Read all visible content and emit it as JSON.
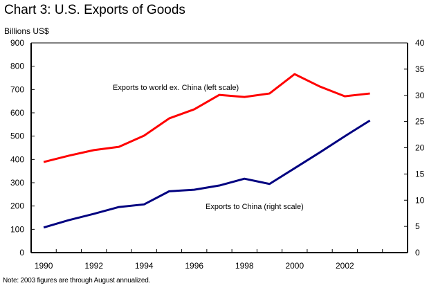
{
  "chart_data": {
    "type": "line",
    "title": "Chart 3: U.S. Exports of Goods",
    "ylabel": "Billions US$",
    "note": "Note: 2003 figures are through August annualized.",
    "x": [
      1990,
      1991,
      1992,
      1993,
      1994,
      1995,
      1996,
      1997,
      1998,
      1999,
      2000,
      2001,
      2002,
      2003
    ],
    "x_slots": 15,
    "x_tick_labels": [
      "1990",
      "1992",
      "1994",
      "1996",
      "1998",
      "2000",
      "2002"
    ],
    "y_left": {
      "ylim": [
        0,
        900
      ],
      "ticks": [
        "0",
        "100",
        "200",
        "300",
        "400",
        "500",
        "600",
        "700",
        "800",
        "900"
      ]
    },
    "y_right": {
      "ylim": [
        0,
        40
      ],
      "ticks": [
        "0",
        "5",
        "10",
        "15",
        "20",
        "25",
        "30",
        "35",
        "40"
      ]
    },
    "grid": false,
    "series": [
      {
        "name": "Exports to world ex. China (left scale)",
        "axis": "left",
        "color": "#ff0000",
        "values": [
          389,
          416,
          440,
          454,
          502,
          576,
          615,
          677,
          668,
          683,
          766,
          713,
          671,
          683
        ]
      },
      {
        "name": "Exports to China (right scale)",
        "axis": "right",
        "color": "#000080",
        "values": [
          4.8,
          6.2,
          7.4,
          8.7,
          9.2,
          11.7,
          12.0,
          12.8,
          14.1,
          13.1,
          16.1,
          19.1,
          22.2,
          25.2
        ]
      }
    ]
  }
}
